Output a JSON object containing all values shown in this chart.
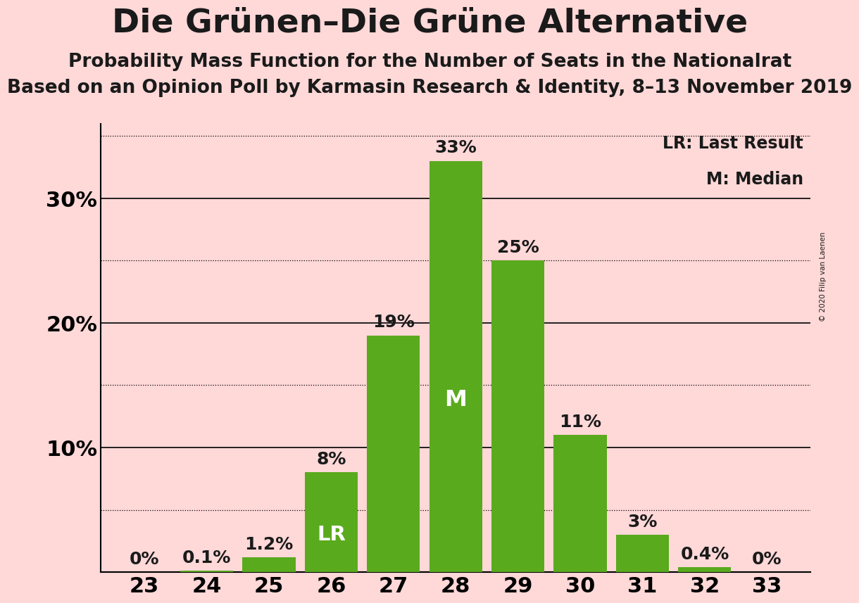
{
  "title": "Die Grünen–Die Grüne Alternative",
  "subtitle1": "Probability Mass Function for the Number of Seats in the Nationalrat",
  "subtitle2": "Based on an Opinion Poll by Karmasin Research & Identity, 8–13 November 2019",
  "copyright": "© 2020 Filip van Laenen",
  "seats": [
    23,
    24,
    25,
    26,
    27,
    28,
    29,
    30,
    31,
    32,
    33
  ],
  "probabilities": [
    0.0,
    0.1,
    1.2,
    8.0,
    19.0,
    33.0,
    25.0,
    11.0,
    3.0,
    0.4,
    0.0
  ],
  "bar_color": "#5aaa1e",
  "background_color": "#ffd8d8",
  "text_color": "#1a1a1a",
  "label_color_outside": "#1a1a1a",
  "label_color_inside": "#ffffff",
  "lr_seat": 26,
  "median_seat": 28,
  "ylim": [
    0,
    36
  ],
  "yticks_labeled": [
    10,
    20,
    30
  ],
  "ytick_labels": [
    "10%",
    "20%",
    "30%"
  ],
  "solid_gridlines": [
    10,
    20,
    30
  ],
  "dotted_gridlines": [
    5,
    15,
    25,
    35
  ],
  "legend_text": [
    "LR: Last Result",
    "M: Median"
  ],
  "title_fontsize": 34,
  "subtitle1_fontsize": 19,
  "subtitle2_fontsize": 19,
  "axis_fontsize": 22,
  "bar_label_fontsize": 18,
  "legend_fontsize": 17,
  "inside_label_fontsize_lr": 21,
  "inside_label_fontsize_m": 23
}
